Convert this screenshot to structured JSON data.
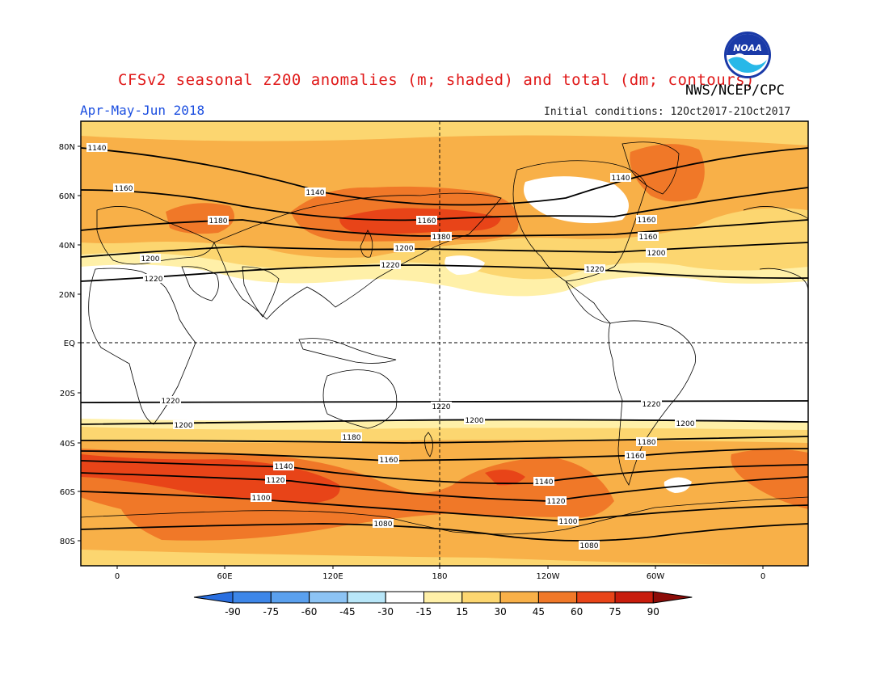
{
  "title": "CFSv2 seasonal z200 anomalies (m; shaded) and total (dm; contours)",
  "organization": "NWS/NCEP/CPC",
  "logo_text": "NOAA",
  "period": "Apr-May-Jun 2018",
  "initial_conditions": "Initial conditions: 12Oct2017-21Oct2017",
  "lat_labels": [
    "80N",
    "60N",
    "40N",
    "20N",
    "EQ",
    "20S",
    "40S",
    "60S",
    "80S"
  ],
  "lon_labels": [
    "0",
    "60E",
    "120E",
    "180",
    "120W",
    "60W",
    "0"
  ],
  "contour_labels": [
    {
      "text": "1140"
    },
    {
      "text": "1160"
    },
    {
      "text": "1180"
    },
    {
      "text": "1200"
    },
    {
      "text": "1220"
    },
    {
      "text": "1140"
    },
    {
      "text": "1160"
    },
    {
      "text": "1180"
    },
    {
      "text": "1200"
    },
    {
      "text": "1220"
    },
    {
      "text": "1140"
    },
    {
      "text": "1160"
    },
    {
      "text": "1160"
    },
    {
      "text": "1200"
    },
    {
      "text": "1220"
    },
    {
      "text": "1220"
    },
    {
      "text": "1200"
    },
    {
      "text": "1180"
    },
    {
      "text": "1160"
    },
    {
      "text": "1140"
    },
    {
      "text": "1120"
    },
    {
      "text": "1100"
    },
    {
      "text": "1080"
    },
    {
      "text": "1220"
    },
    {
      "text": "1200"
    },
    {
      "text": "1180"
    },
    {
      "text": "1160"
    },
    {
      "text": "1140"
    },
    {
      "text": "1120"
    },
    {
      "text": "1100"
    },
    {
      "text": "1080"
    },
    {
      "text": "1220"
    },
    {
      "text": "1200"
    }
  ],
  "colorbar": {
    "labels": [
      "-90",
      "-75",
      "-60",
      "-45",
      "-30",
      "-15",
      "15",
      "30",
      "45",
      "60",
      "75",
      "90"
    ],
    "colors": [
      "#2a6fe0",
      "#3d86e8",
      "#5aa0ee",
      "#8cc3f4",
      "#b8e6f8",
      "#ffffff",
      "#fff0a8",
      "#fcd670",
      "#f8b048",
      "#f07828",
      "#e84418",
      "#c81c0c",
      "#8c0c08"
    ]
  },
  "shading_colors": {
    "light": "#fff0a8",
    "mid": "#fcd670",
    "orange": "#f8b048",
    "dark_orange": "#f07828",
    "red": "#e84418"
  }
}
